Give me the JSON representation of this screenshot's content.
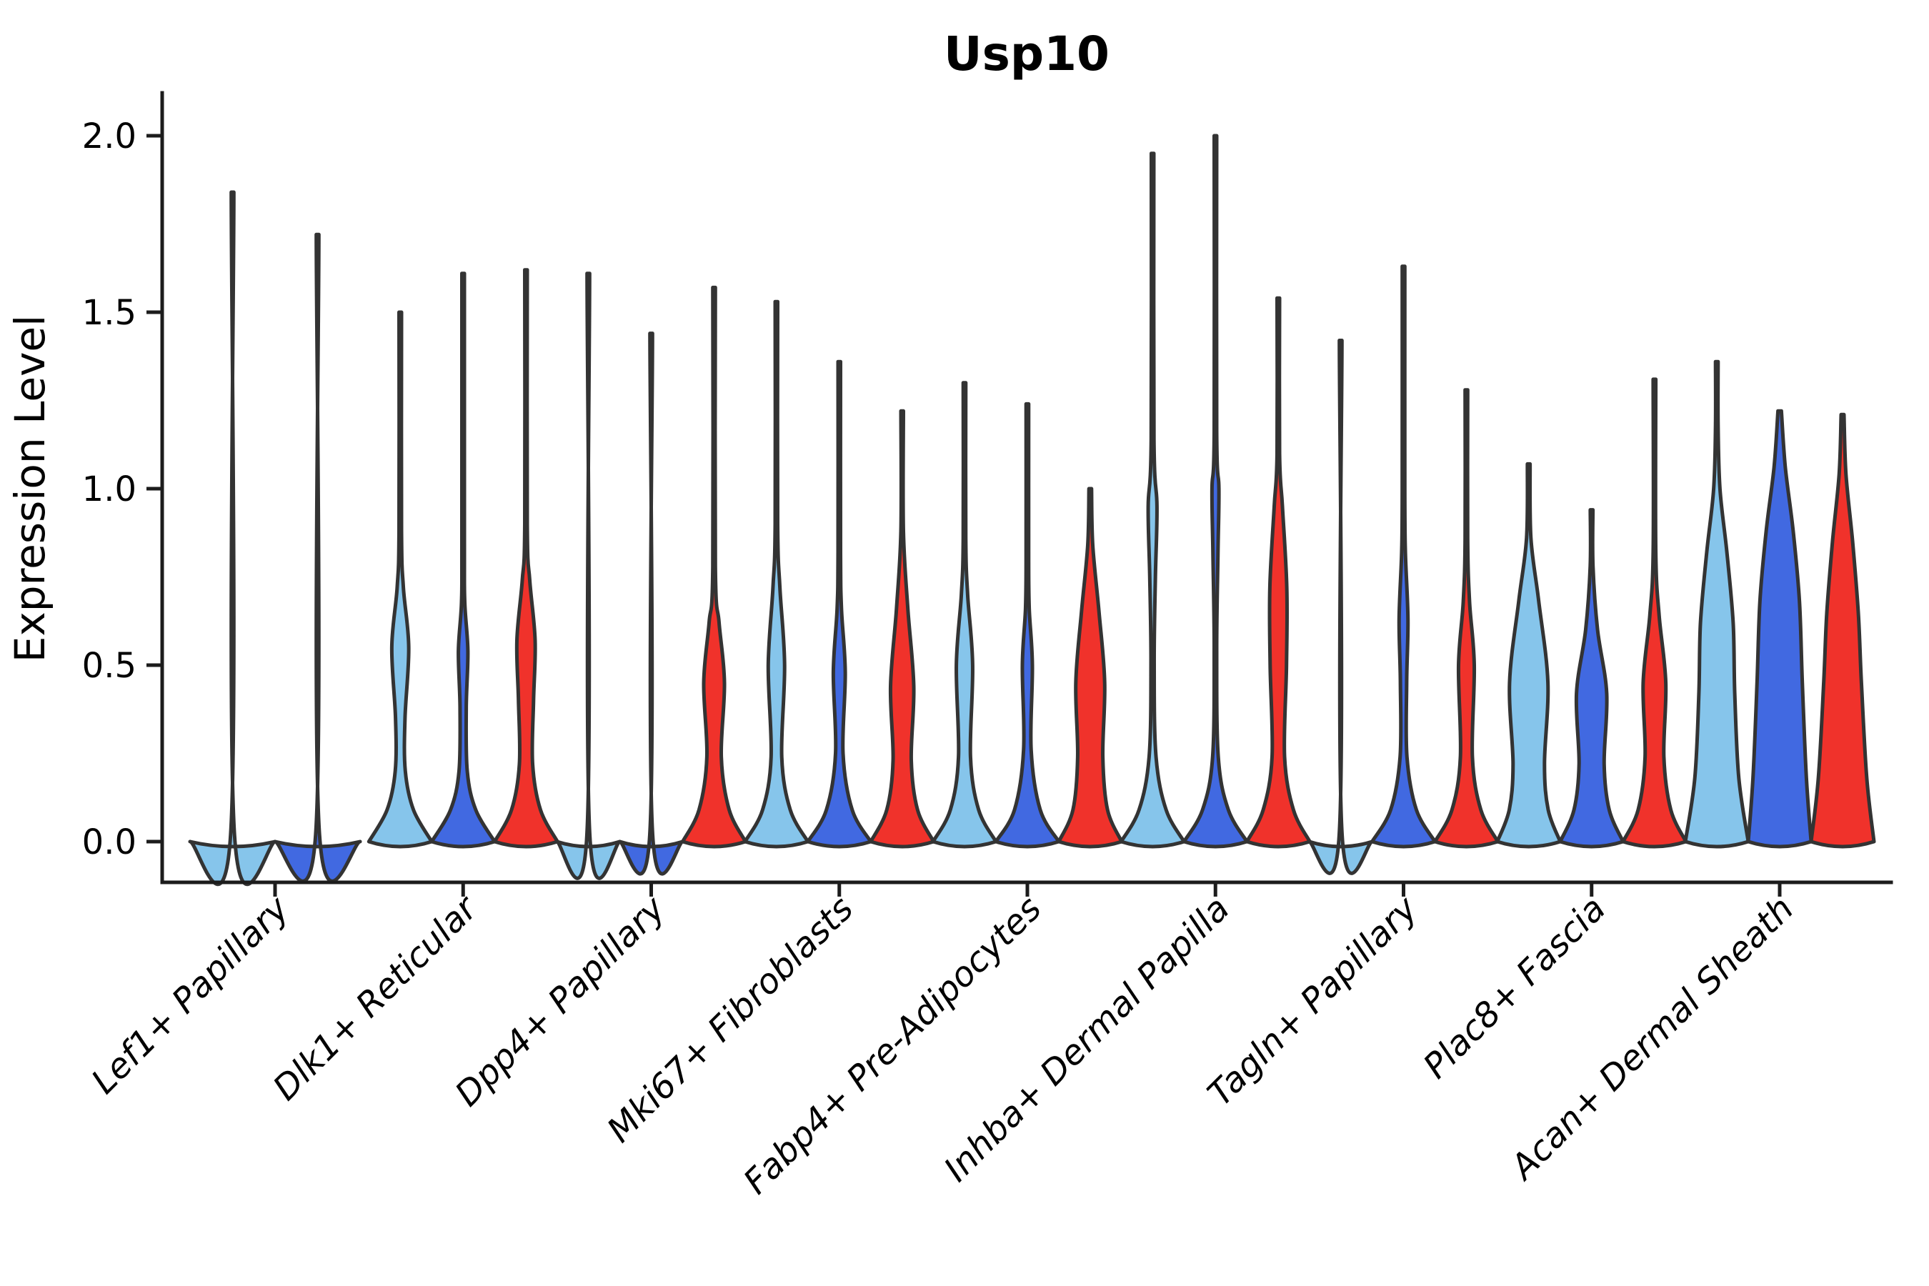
{
  "chart_data": {
    "type": "violin",
    "title": "Usp10",
    "ylabel": "Expression Level",
    "xlabel": "",
    "ylim": [
      0.0,
      2.0
    ],
    "yticks": [
      2.0,
      1.5,
      1.0,
      0.5,
      0.0
    ],
    "ytick_labels": [
      "2.0",
      "1.5",
      "1.0",
      "0.5",
      "0.0"
    ],
    "grid": false,
    "legend_position": "none",
    "x_tick_label_style": "italic, rotated 45deg",
    "series_colors": {
      "light-blue": "#86C5EB",
      "royal-blue": "#4169E1",
      "red": "#F0322B"
    },
    "edge_color": "#333333",
    "categories": [
      "Lef1+ Papillary",
      "Dlk1+ Reticular",
      "Dpp4+ Papillary",
      "Mki67+ Fibroblasts",
      "Fabp4+ Pre-Adipocytes",
      "Inhba+ Dermal Papilla",
      "Tagln+ Papillary",
      "Plac8+ Fascia",
      "Acan+ Dermal Sheath"
    ],
    "groups": [
      {
        "label": "Lef1+ Papillary",
        "violins": [
          {
            "series": "light-blue",
            "stem_top": 1.84,
            "flat": true,
            "profile": [
              [
                0,
                1
              ],
              [
                0.02,
                0.045
              ],
              [
                1.84,
                0.016
              ]
            ]
          },
          {
            "series": "royal-blue",
            "stem_top": 1.72,
            "flat": true,
            "profile": [
              [
                0,
                1
              ],
              [
                0.02,
                0.045
              ],
              [
                1.72,
                0.016
              ]
            ]
          }
        ]
      },
      {
        "label": "Dlk1+ Reticular",
        "violins": [
          {
            "series": "light-blue",
            "stem_top": 1.5,
            "flat": false,
            "profile": [
              [
                0,
                1
              ],
              [
                0.09,
                0.42
              ],
              [
                0.2,
                0.16
              ],
              [
                0.35,
                0.15
              ],
              [
                0.55,
                0.27
              ],
              [
                0.72,
                0.1
              ],
              [
                0.88,
                0.03
              ],
              [
                1.5,
                0.016
              ]
            ]
          },
          {
            "series": "royal-blue",
            "stem_top": 1.61,
            "flat": false,
            "profile": [
              [
                0,
                1
              ],
              [
                0.09,
                0.4
              ],
              [
                0.2,
                0.13
              ],
              [
                0.38,
                0.1
              ],
              [
                0.54,
                0.15
              ],
              [
                0.68,
                0.05
              ],
              [
                0.85,
                0.025
              ],
              [
                1.61,
                0.016
              ]
            ]
          },
          {
            "series": "red",
            "stem_top": 1.62,
            "flat": false,
            "profile": [
              [
                0,
                1
              ],
              [
                0.09,
                0.46
              ],
              [
                0.22,
                0.21
              ],
              [
                0.4,
                0.24
              ],
              [
                0.57,
                0.29
              ],
              [
                0.74,
                0.12
              ],
              [
                0.9,
                0.03
              ],
              [
                1.62,
                0.016
              ]
            ]
          }
        ]
      },
      {
        "label": "Dpp4+ Papillary",
        "violins": [
          {
            "series": "light-blue",
            "stem_top": 1.61,
            "flat": true,
            "profile": [
              [
                0,
                1
              ],
              [
                0.02,
                0.045
              ],
              [
                1.61,
                0.016
              ]
            ]
          },
          {
            "series": "royal-blue",
            "stem_top": 1.44,
            "flat": true,
            "profile": [
              [
                0,
                1
              ],
              [
                0.02,
                0.045
              ],
              [
                1.44,
                0.016
              ]
            ]
          },
          {
            "series": "red",
            "stem_top": 1.57,
            "flat": false,
            "profile": [
              [
                0,
                1
              ],
              [
                0.09,
                0.48
              ],
              [
                0.24,
                0.23
              ],
              [
                0.45,
                0.33
              ],
              [
                0.62,
                0.16
              ],
              [
                0.78,
                0.04
              ],
              [
                1.57,
                0.016
              ]
            ]
          }
        ]
      },
      {
        "label": "Mki67+ Fibroblasts",
        "violins": [
          {
            "series": "light-blue",
            "stem_top": 1.53,
            "flat": false,
            "profile": [
              [
                0,
                1
              ],
              [
                0.09,
                0.44
              ],
              [
                0.24,
                0.17
              ],
              [
                0.5,
                0.26
              ],
              [
                0.72,
                0.11
              ],
              [
                0.9,
                0.03
              ],
              [
                1.53,
                0.016
              ]
            ]
          },
          {
            "series": "royal-blue",
            "stem_top": 1.36,
            "flat": false,
            "profile": [
              [
                0,
                1
              ],
              [
                0.09,
                0.41
              ],
              [
                0.25,
                0.12
              ],
              [
                0.48,
                0.19
              ],
              [
                0.66,
                0.07
              ],
              [
                0.82,
                0.025
              ],
              [
                1.36,
                0.016
              ]
            ]
          },
          {
            "series": "red",
            "stem_top": 1.22,
            "flat": false,
            "profile": [
              [
                0,
                1
              ],
              [
                0.09,
                0.49
              ],
              [
                0.23,
                0.29
              ],
              [
                0.44,
                0.37
              ],
              [
                0.66,
                0.18
              ],
              [
                0.88,
                0.04
              ],
              [
                1.22,
                0.016
              ]
            ]
          }
        ]
      },
      {
        "label": "Fabp4+ Pre-Adipocytes",
        "violins": [
          {
            "series": "light-blue",
            "stem_top": 1.3,
            "flat": false,
            "profile": [
              [
                0,
                1
              ],
              [
                0.09,
                0.45
              ],
              [
                0.24,
                0.19
              ],
              [
                0.5,
                0.26
              ],
              [
                0.7,
                0.1
              ],
              [
                0.86,
                0.03
              ],
              [
                1.3,
                0.016
              ]
            ]
          },
          {
            "series": "royal-blue",
            "stem_top": 1.24,
            "flat": false,
            "profile": [
              [
                0,
                1
              ],
              [
                0.09,
                0.41
              ],
              [
                0.26,
                0.12
              ],
              [
                0.5,
                0.16
              ],
              [
                0.66,
                0.06
              ],
              [
                0.8,
                0.025
              ],
              [
                1.24,
                0.016
              ]
            ]
          },
          {
            "series": "red",
            "stem_top": 1.0,
            "flat": false,
            "profile": [
              [
                0,
                1
              ],
              [
                0.09,
                0.55
              ],
              [
                0.24,
                0.4
              ],
              [
                0.45,
                0.46
              ],
              [
                0.65,
                0.28
              ],
              [
                0.84,
                0.08
              ],
              [
                1.0,
                0.016
              ]
            ]
          }
        ]
      },
      {
        "label": "Inhba+ Dermal Papilla",
        "violins": [
          {
            "series": "light-blue",
            "stem_top": 1.95,
            "flat": false,
            "profile": [
              [
                0,
                1
              ],
              [
                0.09,
                0.43
              ],
              [
                0.24,
                0.11
              ],
              [
                0.5,
                0.05
              ],
              [
                0.75,
                0.09
              ],
              [
                0.95,
                0.14
              ],
              [
                1.14,
                0.045
              ],
              [
                1.95,
                0.016
              ]
            ]
          },
          {
            "series": "royal-blue",
            "stem_top": 2.0,
            "flat": false,
            "profile": [
              [
                0,
                1
              ],
              [
                0.09,
                0.41
              ],
              [
                0.24,
                0.09
              ],
              [
                0.55,
                0.04
              ],
              [
                0.82,
                0.08
              ],
              [
                1.0,
                0.11
              ],
              [
                1.16,
                0.035
              ],
              [
                2.0,
                0.016
              ]
            ]
          },
          {
            "series": "red",
            "stem_top": 1.54,
            "flat": false,
            "profile": [
              [
                0,
                1
              ],
              [
                0.09,
                0.48
              ],
              [
                0.24,
                0.2
              ],
              [
                0.5,
                0.26
              ],
              [
                0.72,
                0.27
              ],
              [
                0.95,
                0.13
              ],
              [
                1.1,
                0.04
              ],
              [
                1.54,
                0.016
              ]
            ]
          }
        ]
      },
      {
        "label": "Tagln+ Papillary",
        "violins": [
          {
            "series": "light-blue",
            "stem_top": 1.42,
            "flat": true,
            "profile": [
              [
                0,
                1
              ],
              [
                0.02,
                0.045
              ],
              [
                1.42,
                0.016
              ]
            ]
          },
          {
            "series": "royal-blue",
            "stem_top": 1.63,
            "flat": false,
            "profile": [
              [
                0,
                1
              ],
              [
                0.09,
                0.41
              ],
              [
                0.24,
                0.11
              ],
              [
                0.45,
                0.1
              ],
              [
                0.63,
                0.14
              ],
              [
                0.82,
                0.06
              ],
              [
                1.0,
                0.025
              ],
              [
                1.63,
                0.016
              ]
            ]
          },
          {
            "series": "red",
            "stem_top": 1.28,
            "flat": false,
            "profile": [
              [
                0,
                1
              ],
              [
                0.09,
                0.46
              ],
              [
                0.24,
                0.19
              ],
              [
                0.5,
                0.25
              ],
              [
                0.68,
                0.1
              ],
              [
                0.86,
                0.03
              ],
              [
                1.28,
                0.016
              ]
            ]
          }
        ]
      },
      {
        "label": "Plac8+ Fascia",
        "violins": [
          {
            "series": "light-blue",
            "stem_top": 1.07,
            "flat": false,
            "profile": [
              [
                0,
                1
              ],
              [
                0.09,
                0.62
              ],
              [
                0.22,
                0.5
              ],
              [
                0.45,
                0.61
              ],
              [
                0.68,
                0.32
              ],
              [
                0.86,
                0.07
              ],
              [
                1.07,
                0.02
              ]
            ]
          },
          {
            "series": "royal-blue",
            "stem_top": 0.94,
            "flat": false,
            "profile": [
              [
                0,
                1
              ],
              [
                0.09,
                0.56
              ],
              [
                0.22,
                0.4
              ],
              [
                0.42,
                0.48
              ],
              [
                0.6,
                0.19
              ],
              [
                0.78,
                0.045
              ],
              [
                0.94,
                0.02
              ]
            ]
          },
          {
            "series": "red",
            "stem_top": 1.31,
            "flat": false,
            "profile": [
              [
                0,
                1
              ],
              [
                0.09,
                0.52
              ],
              [
                0.24,
                0.3
              ],
              [
                0.45,
                0.36
              ],
              [
                0.64,
                0.15
              ],
              [
                0.82,
                0.035
              ],
              [
                1.31,
                0.016
              ]
            ]
          }
        ]
      },
      {
        "label": "Acan+ Dermal Sheath",
        "violins": [
          {
            "series": "light-blue",
            "stem_top": 1.36,
            "flat": false,
            "profile": [
              [
                0,
                1
              ],
              [
                0.18,
                0.7
              ],
              [
                0.42,
                0.57
              ],
              [
                0.62,
                0.52
              ],
              [
                0.82,
                0.32
              ],
              [
                1.0,
                0.1
              ],
              [
                1.18,
                0.035
              ],
              [
                1.36,
                0.02
              ]
            ]
          },
          {
            "series": "royal-blue",
            "stem_top": 1.22,
            "flat": false,
            "profile": [
              [
                0,
                1
              ],
              [
                0.18,
                0.85
              ],
              [
                0.45,
                0.72
              ],
              [
                0.68,
                0.63
              ],
              [
                0.88,
                0.43
              ],
              [
                1.06,
                0.18
              ],
              [
                1.22,
                0.055
              ]
            ]
          },
          {
            "series": "red",
            "stem_top": 1.21,
            "flat": false,
            "profile": [
              [
                0,
                1
              ],
              [
                0.18,
                0.77
              ],
              [
                0.45,
                0.6
              ],
              [
                0.65,
                0.5
              ],
              [
                0.85,
                0.32
              ],
              [
                1.04,
                0.11
              ],
              [
                1.21,
                0.045
              ]
            ]
          }
        ]
      }
    ]
  }
}
